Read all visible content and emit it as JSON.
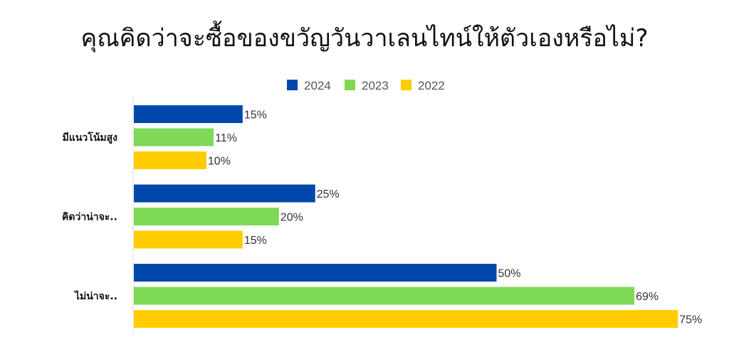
{
  "chart_data": {
    "type": "bar",
    "orientation": "horizontal",
    "title": "คุณคิดว่าจะซื้อของขวัญวันวาเลนไทน์ให้ตัวเองหรือไม่?",
    "categories": [
      "มีแนวโน้มสูง",
      "คิดว่าน่าจะ..",
      "ไม่น่าจะ.."
    ],
    "series": [
      {
        "name": "2024",
        "color": "#0047ab",
        "values": [
          15,
          25,
          50
        ]
      },
      {
        "name": "2023",
        "color": "#7ed957",
        "values": [
          11,
          20,
          69
        ]
      },
      {
        "name": "2022",
        "color": "#ffcc00",
        "values": [
          10,
          15,
          75
        ]
      }
    ],
    "value_suffix": "%",
    "xlim": [
      0,
      75
    ],
    "legend_position": "top",
    "grid": false
  }
}
